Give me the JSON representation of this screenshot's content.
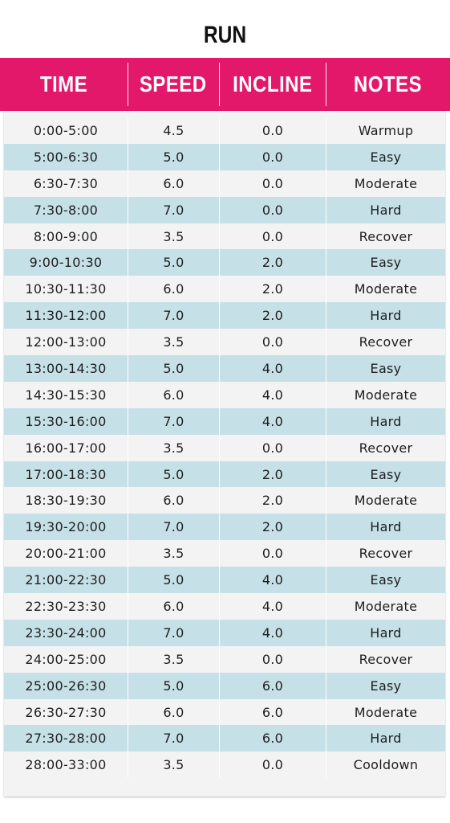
{
  "title": "RUN",
  "columns": [
    "TIME",
    "SPEED",
    "INCLINE",
    "NOTES"
  ],
  "rows": [
    {
      "time": "0:00-5:00",
      "speed": "4.5",
      "incline": "0.0",
      "notes": "Warmup"
    },
    {
      "time": "5:00-6:30",
      "speed": "5.0",
      "incline": "0.0",
      "notes": "Easy"
    },
    {
      "time": "6:30-7:30",
      "speed": "6.0",
      "incline": "0.0",
      "notes": "Moderate"
    },
    {
      "time": "7:30-8:00",
      "speed": "7.0",
      "incline": "0.0",
      "notes": "Hard"
    },
    {
      "time": "8:00-9:00",
      "speed": "3.5",
      "incline": "0.0",
      "notes": "Recover"
    },
    {
      "time": "9:00-10:30",
      "speed": "5.0",
      "incline": "2.0",
      "notes": "Easy"
    },
    {
      "time": "10:30-11:30",
      "speed": "6.0",
      "incline": "2.0",
      "notes": "Moderate"
    },
    {
      "time": "11:30-12:00",
      "speed": "7.0",
      "incline": "2.0",
      "notes": "Hard"
    },
    {
      "time": "12:00-13:00",
      "speed": "3.5",
      "incline": "0.0",
      "notes": "Recover"
    },
    {
      "time": "13:00-14:30",
      "speed": "5.0",
      "incline": "4.0",
      "notes": "Easy"
    },
    {
      "time": "14:30-15:30",
      "speed": "6.0",
      "incline": "4.0",
      "notes": "Moderate"
    },
    {
      "time": "15:30-16:00",
      "speed": "7.0",
      "incline": "4.0",
      "notes": "Hard"
    },
    {
      "time": "16:00-17:00",
      "speed": "3.5",
      "incline": "0.0",
      "notes": "Recover"
    },
    {
      "time": "17:00-18:30",
      "speed": "5.0",
      "incline": "2.0",
      "notes": "Easy"
    },
    {
      "time": "18:30-19:30",
      "speed": "6.0",
      "incline": "2.0",
      "notes": "Moderate"
    },
    {
      "time": "19:30-20:00",
      "speed": "7.0",
      "incline": "2.0",
      "notes": "Hard"
    },
    {
      "time": "20:00-21:00",
      "speed": "3.5",
      "incline": "0.0",
      "notes": "Recover"
    },
    {
      "time": "21:00-22:30",
      "speed": "5.0",
      "incline": "4.0",
      "notes": "Easy"
    },
    {
      "time": "22:30-23:30",
      "speed": "6.0",
      "incline": "4.0",
      "notes": "Moderate"
    },
    {
      "time": "23:30-24:00",
      "speed": "7.0",
      "incline": "4.0",
      "notes": "Hard"
    },
    {
      "time": "24:00-25:00",
      "speed": "3.5",
      "incline": "0.0",
      "notes": "Recover"
    },
    {
      "time": "25:00-26:30",
      "speed": "5.0",
      "incline": "6.0",
      "notes": "Easy"
    },
    {
      "time": "26:30-27:30",
      "speed": "6.0",
      "incline": "6.0",
      "notes": "Moderate"
    },
    {
      "time": "27:30-28:00",
      "speed": "7.0",
      "incline": "6.0",
      "notes": "Hard"
    },
    {
      "time": "28:00-33:00",
      "speed": "3.5",
      "incline": "0.0",
      "notes": "Cooldown"
    }
  ],
  "colors": {
    "header_bg": "#e3186b",
    "row_alt": "#c5e0e6",
    "row_base": "#f3f3f4"
  }
}
